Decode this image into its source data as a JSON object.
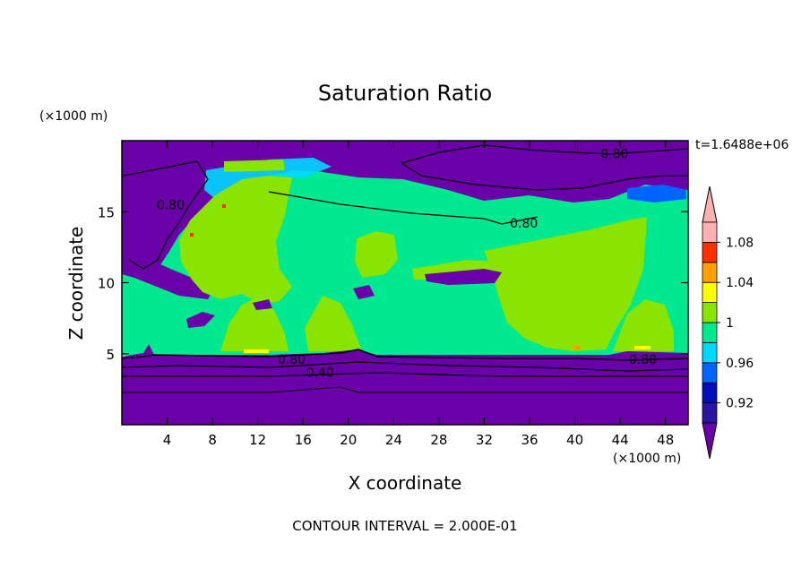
{
  "chart_data": {
    "type": "heatmap",
    "title": "Saturation Ratio",
    "xlabel": "X coordinate",
    "ylabel": "Z coordinate",
    "x_unit": "(×1000 m)",
    "y_unit": "(×1000 m)",
    "time_label": "t=1.6488e+06",
    "footer": "CONTOUR INTERVAL = 2.000E-01",
    "xlim": [
      0,
      50
    ],
    "ylim": [
      0,
      20
    ],
    "x_ticks": [
      4,
      8,
      12,
      16,
      20,
      24,
      28,
      32,
      36,
      40,
      44,
      48
    ],
    "y_ticks": [
      5,
      10,
      15
    ],
    "colorbar": {
      "levels": [
        0.9,
        0.92,
        0.94,
        0.96,
        0.98,
        1.0,
        1.02,
        1.04,
        1.06,
        1.08,
        1.1
      ],
      "tick_labels": [
        "0.92",
        "0.96",
        "1",
        "1.04",
        "1.08"
      ],
      "tick_values": [
        0.92,
        0.96,
        1.0,
        1.04,
        1.08
      ],
      "colors": [
        "#6a00a8",
        "#2a14a0",
        "#0010b8",
        "#0064ff",
        "#00d8ff",
        "#00e890",
        "#88e400",
        "#ffff00",
        "#ffa000",
        "#ff3000",
        "#ffb0b0"
      ],
      "under_color": "#6a00a8",
      "over_color": "#ffb0b0"
    },
    "contour_labels": [
      {
        "text": "0.80",
        "x": 43.5,
        "z": 19.1
      },
      {
        "text": "0.80",
        "x": 4.3,
        "z": 15.5
      },
      {
        "text": "0.80",
        "x": 35.5,
        "z": 14.2
      },
      {
        "text": "0.80",
        "x": 15.0,
        "z": 4.6
      },
      {
        "text": "0.40",
        "x": 17.5,
        "z": 3.7
      },
      {
        "text": "0.80",
        "x": 46.0,
        "z": 4.6
      }
    ]
  }
}
